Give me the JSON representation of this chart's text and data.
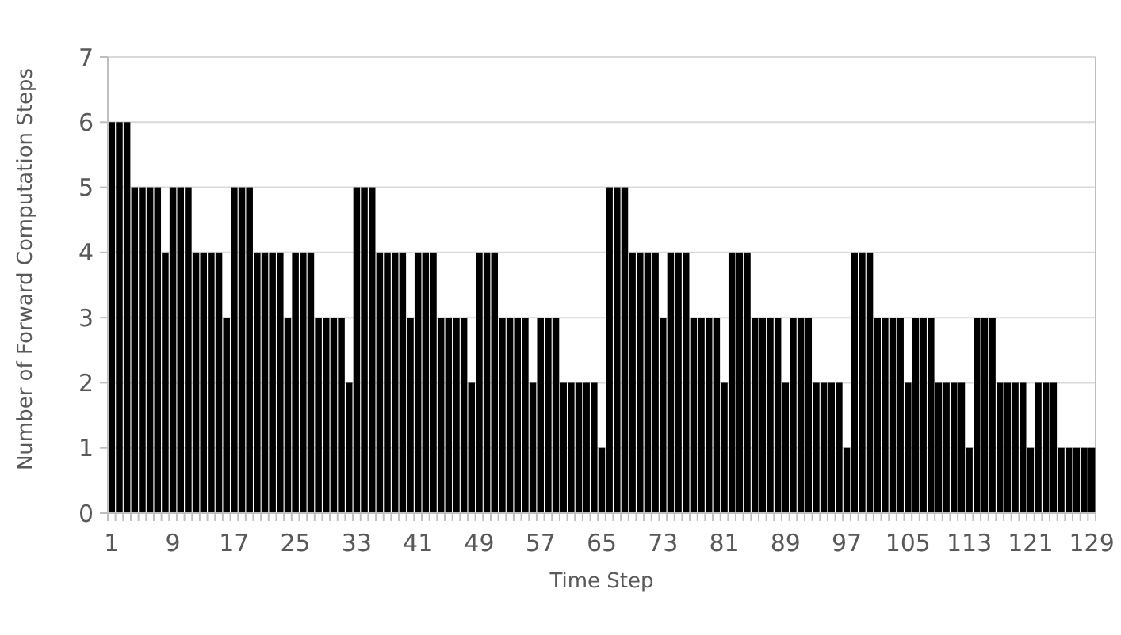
{
  "chart_data": {
    "type": "bar",
    "xlabel": "Time Step",
    "ylabel": "Number of Forward Computation Steps",
    "categories": [
      "1",
      null,
      null,
      null,
      null,
      null,
      null,
      null,
      "9",
      null,
      null,
      null,
      null,
      null,
      null,
      null,
      "17",
      null,
      null,
      null,
      null,
      null,
      null,
      null,
      "25",
      null,
      null,
      null,
      null,
      null,
      null,
      null,
      "33",
      null,
      null,
      null,
      null,
      null,
      null,
      null,
      "41",
      null,
      null,
      null,
      null,
      null,
      null,
      null,
      "49",
      null,
      null,
      null,
      null,
      null,
      null,
      null,
      "57",
      null,
      null,
      null,
      null,
      null,
      null,
      null,
      "65",
      null,
      null,
      null,
      null,
      null,
      null,
      null,
      "73",
      null,
      null,
      null,
      null,
      null,
      null,
      null,
      "81",
      null,
      null,
      null,
      null,
      null,
      null,
      null,
      "89",
      null,
      null,
      null,
      null,
      null,
      null,
      null,
      "97",
      null,
      null,
      null,
      null,
      null,
      null,
      null,
      "105",
      null,
      null,
      null,
      null,
      null,
      null,
      null,
      "113",
      null,
      null,
      null,
      null,
      null,
      null,
      null,
      "121",
      null,
      null,
      null,
      null,
      null,
      null,
      null,
      "129"
    ],
    "values": [
      6,
      6,
      6,
      5,
      5,
      5,
      5,
      4,
      5,
      5,
      5,
      4,
      4,
      4,
      4,
      3,
      5,
      5,
      5,
      4,
      4,
      4,
      4,
      3,
      4,
      4,
      4,
      3,
      3,
      3,
      3,
      2,
      5,
      5,
      5,
      4,
      4,
      4,
      4,
      3,
      4,
      4,
      4,
      3,
      3,
      3,
      3,
      2,
      4,
      4,
      4,
      3,
      3,
      3,
      3,
      2,
      3,
      3,
      3,
      2,
      2,
      2,
      2,
      2,
      1,
      5,
      5,
      5,
      4,
      4,
      4,
      4,
      3,
      4,
      4,
      4,
      3,
      3,
      3,
      3,
      2,
      4,
      4,
      4,
      3,
      3,
      3,
      3,
      2,
      3,
      3,
      3,
      2,
      2,
      2,
      2,
      1,
      4,
      4,
      4,
      3,
      3,
      3,
      3,
      2,
      3,
      3,
      3,
      2,
      2,
      2,
      2,
      1,
      3,
      3,
      3,
      2,
      2,
      2,
      2,
      1,
      2,
      2,
      2,
      1,
      1,
      1,
      1,
      1
    ],
    "color": "#000000",
    "ylim": [
      0,
      7
    ],
    "yticks": [
      0,
      1,
      2,
      3,
      4,
      5,
      6,
      7
    ],
    "grid": "y"
  }
}
